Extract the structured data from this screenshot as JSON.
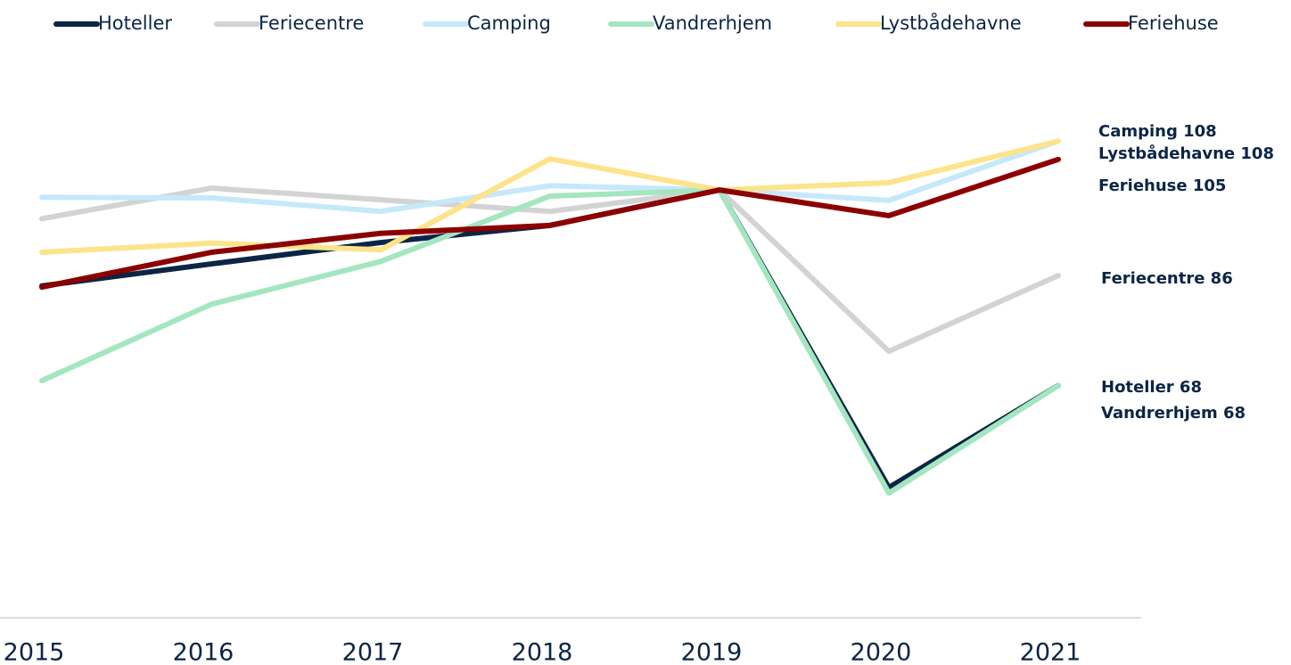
{
  "chart_data": {
    "type": "line",
    "categories": [
      "2015",
      "2016",
      "2017",
      "2018",
      "2019",
      "2020",
      "2021"
    ],
    "series": [
      {
        "name": "Hoteller",
        "color": "#0b2545",
        "values": [
          84.3,
          87.9,
          91.4,
          94.2,
          100,
          51.3,
          68
        ]
      },
      {
        "name": "Feriecentre",
        "color": "#d3d3d3",
        "values": [
          95.3,
          100.3,
          98.4,
          96.5,
          100,
          73.6,
          86
        ]
      },
      {
        "name": "Camping",
        "color": "#c6e8fb",
        "values": [
          98.8,
          98.7,
          96.5,
          100.7,
          100,
          98.3,
          108
        ]
      },
      {
        "name": "Vandrerhjem",
        "color": "#a3e6c0",
        "values": [
          68.8,
          81.3,
          88.3,
          99,
          100,
          50.4,
          68
        ]
      },
      {
        "name": "Lystbådehavne",
        "color": "#fde38a",
        "values": [
          89.8,
          91.3,
          90.2,
          105.1,
          100,
          101.2,
          108
        ]
      },
      {
        "name": "Feriehuse",
        "color": "#8b0000",
        "values": [
          84.1,
          89.8,
          92.9,
          94.2,
          100,
          95.8,
          105
        ]
      }
    ],
    "annotations": [
      "Camping 108",
      "Lystbådehavne 108",
      "Feriehuse 105",
      "Feriecentre 86",
      "Hoteller 68",
      "Vandrerhjem 68"
    ],
    "ylim": [
      30,
      120
    ]
  }
}
